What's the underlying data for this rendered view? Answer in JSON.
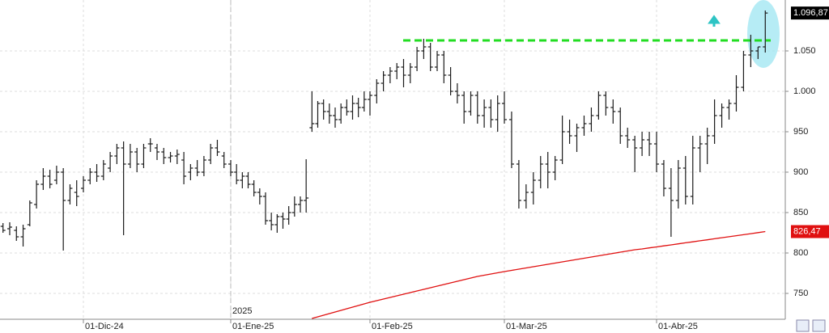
{
  "chart_data": {
    "type": "ohlc",
    "categories": [
      null,
      null,
      null,
      null,
      null,
      null,
      null,
      null,
      null,
      null,
      null,
      null,
      "01-Dic-24",
      null,
      null,
      null,
      null,
      null,
      null,
      null,
      null,
      null,
      null,
      null,
      null,
      null,
      null,
      null,
      null,
      null,
      null,
      null,
      null,
      null,
      "01-Ene-25",
      null,
      null,
      null,
      null,
      null,
      null,
      null,
      null,
      null,
      null,
      null,
      null,
      null,
      null,
      null,
      null,
      null,
      null,
      null,
      null,
      null,
      null,
      null,
      "01-Feb-25",
      null,
      null,
      null,
      null,
      null,
      null,
      null,
      null,
      null,
      null,
      null,
      null,
      null,
      null,
      null,
      null,
      null,
      null,
      null,
      "01-Mar-25",
      null,
      null,
      null,
      null,
      null,
      null,
      null,
      null,
      null,
      null,
      null,
      null,
      null,
      null,
      null,
      null,
      null,
      null,
      null,
      null,
      "01-Abr-25",
      null,
      null,
      null,
      null,
      null,
      null,
      null,
      null,
      null,
      null,
      null,
      null,
      null,
      null,
      null
    ],
    "ohlc": [
      [
        833,
        837,
        825,
        828
      ],
      [
        830,
        838,
        822,
        832
      ],
      [
        828,
        833,
        815,
        820
      ],
      [
        820,
        835,
        808,
        830
      ],
      [
        835,
        865,
        833,
        862
      ],
      [
        860,
        890,
        855,
        885
      ],
      [
        885,
        905,
        878,
        895
      ],
      [
        895,
        903,
        880,
        885
      ],
      [
        890,
        908,
        885,
        900
      ],
      [
        900,
        905,
        803,
        865
      ],
      [
        865,
        885,
        860,
        880
      ],
      [
        875,
        890,
        858,
        870
      ],
      [
        880,
        895,
        875,
        890
      ],
      [
        890,
        905,
        885,
        900
      ],
      [
        900,
        910,
        888,
        895
      ],
      [
        895,
        915,
        890,
        910
      ],
      [
        905,
        925,
        900,
        920
      ],
      [
        920,
        935,
        910,
        930
      ],
      [
        930,
        938,
        822,
        910
      ],
      [
        910,
        935,
        905,
        925
      ],
      [
        925,
        930,
        900,
        910
      ],
      [
        910,
        935,
        905,
        930
      ],
      [
        935,
        942,
        925,
        935
      ],
      [
        930,
        935,
        915,
        925
      ],
      [
        925,
        930,
        910,
        918
      ],
      [
        918,
        925,
        912,
        920
      ],
      [
        920,
        928,
        910,
        922
      ],
      [
        915,
        925,
        885,
        895
      ],
      [
        900,
        910,
        890,
        905
      ],
      [
        905,
        915,
        895,
        900
      ],
      [
        900,
        920,
        895,
        915
      ],
      [
        915,
        935,
        910,
        930
      ],
      [
        930,
        940,
        920,
        925
      ],
      [
        920,
        925,
        905,
        910
      ],
      [
        910,
        915,
        895,
        900
      ],
      [
        900,
        910,
        885,
        890
      ],
      [
        890,
        900,
        880,
        895
      ],
      [
        895,
        900,
        880,
        885
      ],
      [
        885,
        890,
        870,
        875
      ],
      [
        875,
        880,
        860,
        870
      ],
      [
        870,
        875,
        835,
        840
      ],
      [
        840,
        850,
        828,
        835
      ],
      [
        835,
        848,
        825,
        845
      ],
      [
        845,
        850,
        830,
        842
      ],
      [
        842,
        858,
        835,
        850
      ],
      [
        850,
        870,
        845,
        860
      ],
      [
        860,
        870,
        850,
        865
      ],
      [
        865,
        916,
        850,
        868
      ],
      [
        955,
        1000,
        950,
        960
      ],
      [
        960,
        988,
        955,
        985
      ],
      [
        985,
        990,
        965,
        975
      ],
      [
        975,
        985,
        960,
        970
      ],
      [
        970,
        980,
        955,
        965
      ],
      [
        965,
        985,
        960,
        980
      ],
      [
        980,
        990,
        970,
        975
      ],
      [
        975,
        995,
        965,
        985
      ],
      [
        985,
        992,
        968,
        980
      ],
      [
        980,
        1000,
        975,
        990
      ],
      [
        990,
        1000,
        970,
        995
      ],
      [
        995,
        1015,
        985,
        1010
      ],
      [
        1010,
        1025,
        1000,
        1020
      ],
      [
        1020,
        1030,
        1010,
        1025
      ],
      [
        1025,
        1035,
        1015,
        1030
      ],
      [
        1030,
        1040,
        1005,
        1020
      ],
      [
        1020,
        1035,
        1010,
        1030
      ],
      [
        1030,
        1055,
        1025,
        1050
      ],
      [
        1050,
        1065,
        1040,
        1055
      ],
      [
        1055,
        1060,
        1025,
        1030
      ],
      [
        1030,
        1050,
        1025,
        1045
      ],
      [
        1045,
        1050,
        1010,
        1020
      ],
      [
        1020,
        1030,
        995,
        1000
      ],
      [
        1000,
        1010,
        985,
        995
      ],
      [
        995,
        1000,
        960,
        975
      ],
      [
        975,
        1000,
        970,
        995
      ],
      [
        995,
        1000,
        960,
        970
      ],
      [
        970,
        990,
        955,
        980
      ],
      [
        980,
        990,
        955,
        965
      ],
      [
        965,
        995,
        950,
        985
      ],
      [
        985,
        1000,
        960,
        965
      ],
      [
        965,
        975,
        905,
        910
      ],
      [
        910,
        915,
        855,
        865
      ],
      [
        865,
        885,
        855,
        875
      ],
      [
        875,
        900,
        860,
        890
      ],
      [
        890,
        920,
        880,
        910
      ],
      [
        910,
        925,
        880,
        900
      ],
      [
        900,
        920,
        890,
        915
      ],
      [
        915,
        970,
        910,
        950
      ],
      [
        950,
        965,
        935,
        945
      ],
      [
        945,
        960,
        925,
        955
      ],
      [
        955,
        970,
        945,
        960
      ],
      [
        960,
        980,
        950,
        970
      ],
      [
        970,
        1000,
        965,
        995
      ],
      [
        995,
        1000,
        970,
        980
      ],
      [
        980,
        990,
        960,
        975
      ],
      [
        975,
        980,
        935,
        945
      ],
      [
        945,
        955,
        930,
        940
      ],
      [
        940,
        945,
        900,
        930
      ],
      [
        930,
        950,
        920,
        940
      ],
      [
        940,
        950,
        920,
        935
      ],
      [
        935,
        950,
        900,
        910
      ],
      [
        910,
        915,
        870,
        880
      ],
      [
        880,
        905,
        820,
        865
      ],
      [
        865,
        915,
        855,
        905
      ],
      [
        905,
        920,
        860,
        870
      ],
      [
        870,
        945,
        860,
        930
      ],
      [
        930,
        945,
        900,
        935
      ],
      [
        935,
        955,
        910,
        945
      ],
      [
        945,
        990,
        935,
        970
      ],
      [
        970,
        985,
        955,
        980
      ],
      [
        980,
        990,
        965,
        985
      ],
      [
        985,
        1020,
        975,
        1005
      ],
      [
        1005,
        1050,
        1000,
        1045
      ],
      [
        1045,
        1070,
        1030,
        1050
      ],
      [
        1050,
        1055,
        1040,
        1055
      ],
      [
        1055,
        1100,
        1048,
        1096.87
      ]
    ],
    "color": "#1a1a1a",
    "moving_average": {
      "color": "#e01010",
      "values": [
        null,
        null,
        null,
        null,
        null,
        null,
        null,
        null,
        null,
        null,
        null,
        null,
        null,
        null,
        null,
        null,
        null,
        null,
        null,
        null,
        null,
        null,
        null,
        null,
        null,
        null,
        null,
        null,
        null,
        null,
        null,
        null,
        null,
        null,
        null,
        null,
        null,
        null,
        null,
        null,
        null,
        null,
        null,
        null,
        null,
        null,
        null,
        null,
        719,
        721,
        723,
        725,
        727,
        729,
        731,
        733,
        735,
        737,
        739,
        741,
        743,
        745,
        747,
        749,
        751,
        753,
        755,
        757,
        759,
        761,
        763,
        765,
        767,
        769,
        771,
        772.5,
        774,
        775.5,
        777,
        778.5,
        780,
        781.5,
        783,
        784.5,
        786,
        787.5,
        789,
        790.5,
        792,
        793.5,
        795,
        796.5,
        798,
        799.5,
        801,
        802.5,
        804,
        805,
        806.3,
        807.5,
        808.8,
        810,
        811.3,
        812.6,
        813.8,
        815.1,
        816.3,
        817.6,
        818.9,
        820.1,
        821.4,
        822.6,
        823.9,
        825.2,
        826.47
      ]
    },
    "level": {
      "value": 1063,
      "color": "#22dd22"
    },
    "last_labels": [
      {
        "value": 1096.87,
        "label": "1.096,87",
        "color": "#000000"
      },
      {
        "value": 826.47,
        "label": "826,47",
        "color": "#e01010"
      }
    ],
    "year_label": "2025",
    "ylim": [
      718,
      1113
    ],
    "yticks": [
      750,
      800,
      850,
      900,
      950,
      {
        "value": 1000,
        "label": "1.000"
      },
      {
        "value": 1050,
        "label": "1.050"
      }
    ],
    "grid": true
  }
}
